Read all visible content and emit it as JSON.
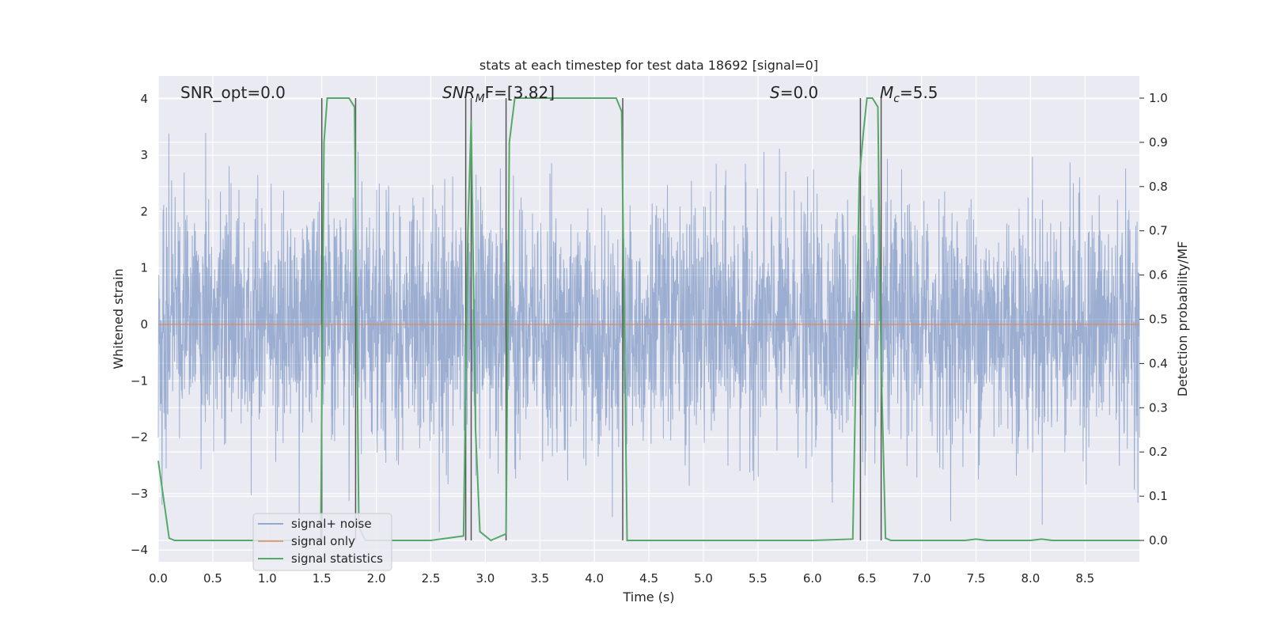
{
  "chart_data": {
    "type": "line",
    "title": "stats at each timestep for test data 18692 [signal=0]",
    "xlabel": "Time (s)",
    "ylabel": "Whitened strain",
    "ylabel_right": "Detection probability/MF",
    "xlim": [
      0.0,
      9.0
    ],
    "ylim": [
      -4.2,
      4.4
    ],
    "ylim_right": [
      -0.05,
      1.05
    ],
    "xticks": [
      "0.0",
      "0.5",
      "1.0",
      "1.5",
      "2.0",
      "2.5",
      "3.0",
      "3.5",
      "4.0",
      "4.5",
      "5.0",
      "5.5",
      "6.0",
      "6.5",
      "7.0",
      "7.5",
      "8.0",
      "8.5"
    ],
    "yticks": [
      "4",
      "3",
      "2",
      "1",
      "0",
      "−1",
      "−2",
      "−3",
      "−4"
    ],
    "yticks_right": [
      "1.0",
      "0.9",
      "0.8",
      "0.7",
      "0.6",
      "0.5",
      "0.4",
      "0.3",
      "0.2",
      "0.1",
      "0.0"
    ],
    "grid": true,
    "legend_placement": "lower-left",
    "annotations": {
      "snr_opt": "SNR_opt=0.0",
      "snr_mf_main": "SNR",
      "snr_mf_sub": "M",
      "snr_mf_rest": "F=[3.82]",
      "s_label_italic": "S",
      "s_label_rest": "=0.0",
      "mc_label_italic": "M",
      "mc_label_sub": "c",
      "mc_label_rest": "=5.5"
    },
    "series": [
      {
        "name": "signal+ noise",
        "color": "#4c72b0",
        "kind": "noise",
        "x_range": [
          0.0,
          9.0
        ],
        "typical_amplitude": 1.7,
        "peak_amplitude": 3.7
      },
      {
        "name": "signal only",
        "color": "#dd8452",
        "x": [
          0.0,
          9.0
        ],
        "y": [
          0.0,
          0.0
        ]
      },
      {
        "name": "signal statistics",
        "color": "#55a868",
        "axis": "right",
        "x": [
          0.0,
          0.1,
          0.15,
          0.5,
          1.0,
          1.49,
          1.52,
          1.55,
          1.6,
          1.75,
          1.8,
          1.84,
          1.9,
          2.5,
          2.8,
          2.84,
          2.87,
          2.91,
          2.95,
          3.05,
          3.19,
          3.22,
          3.27,
          4.2,
          4.25,
          4.3,
          5.0,
          6.0,
          6.37,
          6.43,
          6.47,
          6.5,
          6.55,
          6.6,
          6.63,
          6.67,
          6.72,
          7.0,
          7.4,
          7.5,
          7.6,
          8.0,
          8.1,
          8.2,
          9.0
        ],
        "y": [
          0.18,
          0.005,
          0.0,
          0.0,
          0.0,
          0.0,
          0.9,
          1.0,
          1.0,
          1.0,
          0.98,
          0.03,
          0.0,
          0.0,
          0.01,
          0.7,
          0.95,
          0.25,
          0.02,
          0.0,
          0.015,
          0.9,
          1.0,
          1.0,
          0.97,
          0.0,
          0.0,
          0.0,
          0.003,
          0.82,
          0.93,
          1.0,
          1.0,
          0.98,
          0.4,
          0.005,
          0.0,
          0.0,
          0.0,
          0.003,
          0.0,
          0.0,
          0.003,
          0.0,
          0.0
        ]
      }
    ],
    "vertical_markers": [
      1.5,
      1.81,
      2.82,
      2.87,
      3.19,
      4.26,
      6.44,
      6.63
    ]
  }
}
